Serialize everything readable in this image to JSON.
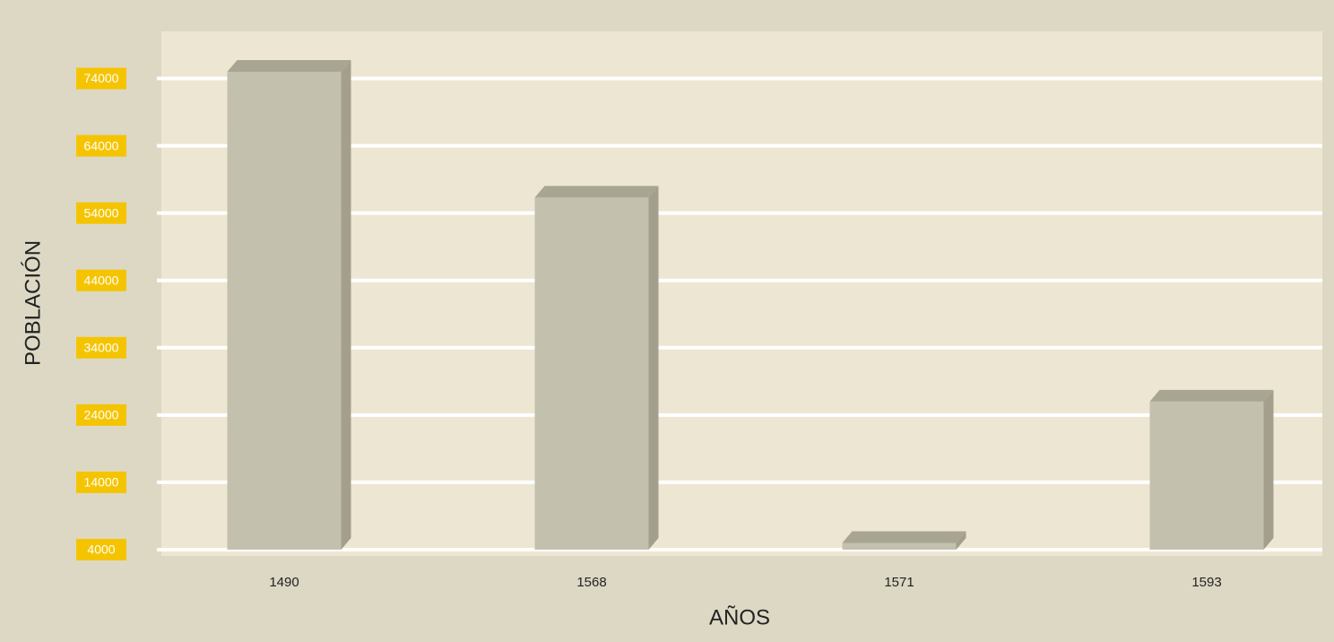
{
  "chart_data": {
    "type": "bar",
    "x_label": "AÑOS",
    "y_label": "POBLACIÓN",
    "categories": [
      "1490",
      "1568",
      "1571",
      "1593"
    ],
    "values": [
      75000,
      56300,
      5000,
      26000
    ],
    "color": "#c3c0ae",
    "ylim": [
      4000,
      81000
    ],
    "yticks": [
      4000,
      14000,
      24000,
      34000,
      44000,
      54000,
      64000,
      74000
    ],
    "grid": true
  }
}
